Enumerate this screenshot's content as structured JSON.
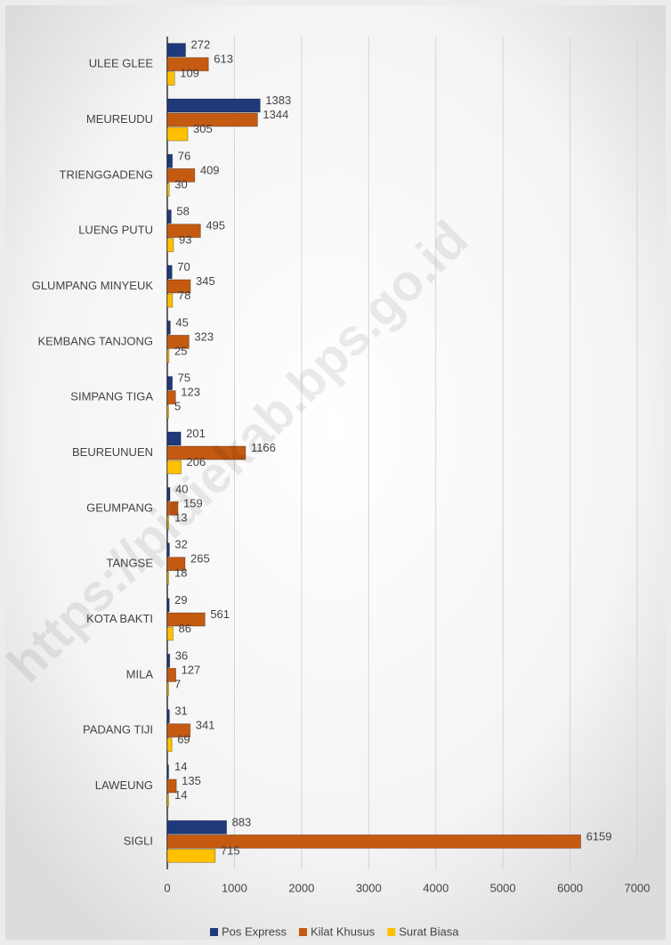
{
  "chart_data": {
    "type": "bar",
    "orientation": "horizontal",
    "categories": [
      "ULEE GLEE",
      "MEUREUDU",
      "TRIENGGADENG",
      "LUENG PUTU",
      "GLUMPANG MINYEUK",
      "KEMBANG TANJONG",
      "SIMPANG TIGA",
      "BEUREUNUEN",
      "GEUMPANG",
      "TANGSE",
      "KOTA BAKTI",
      "MILA",
      "PADANG TIJI",
      "LAWEUNG",
      "SIGLI"
    ],
    "series": [
      {
        "name": "Pos Express",
        "color": "#1f3a7a",
        "values": [
          272,
          1383,
          76,
          58,
          70,
          45,
          75,
          201,
          40,
          32,
          29,
          36,
          31,
          14,
          883
        ]
      },
      {
        "name": "Kilat Khusus",
        "color": "#c55a11",
        "values": [
          613,
          1344,
          409,
          495,
          345,
          323,
          123,
          1166,
          159,
          265,
          561,
          127,
          341,
          135,
          6159
        ]
      },
      {
        "name": "Surat Biasa",
        "color": "#ffc000",
        "values": [
          109,
          305,
          30,
          93,
          78,
          25,
          5,
          206,
          13,
          18,
          86,
          7,
          69,
          14,
          715
        ]
      }
    ],
    "xlim": [
      0,
      7000
    ],
    "xticks": [
      0,
      1000,
      2000,
      3000,
      4000,
      5000,
      6000,
      7000
    ],
    "grid": true,
    "legend": "bottom",
    "watermark": "https://pidiekab.bps.go.id"
  }
}
